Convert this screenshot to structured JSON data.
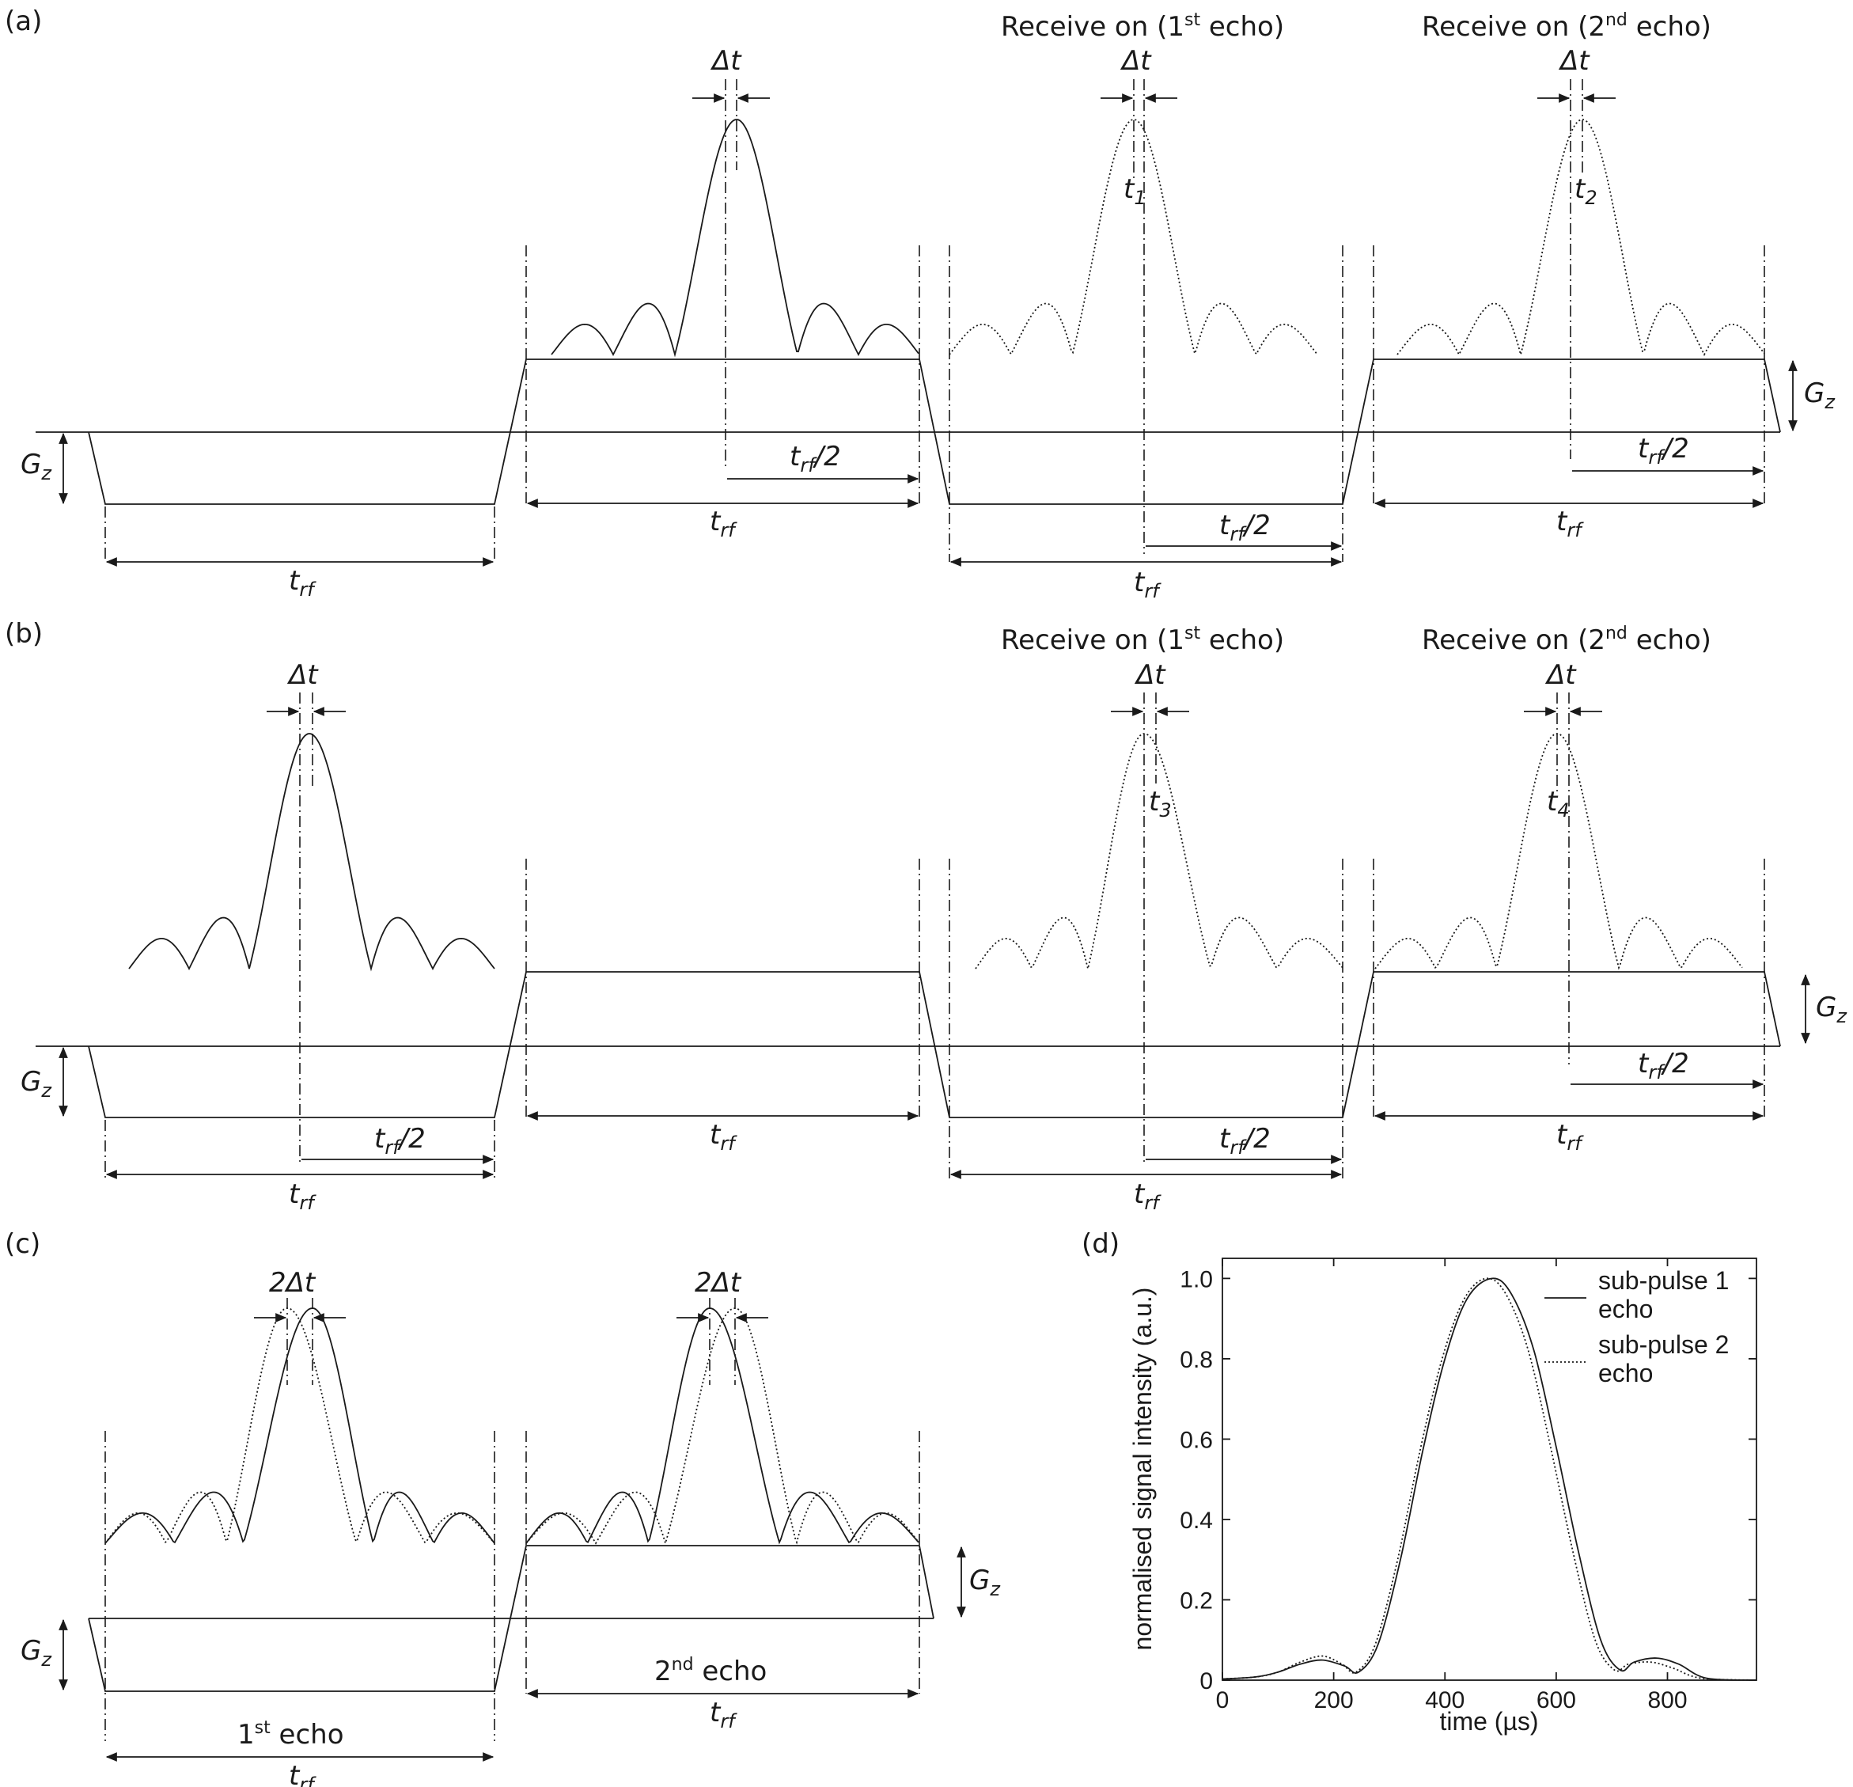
{
  "panels": {
    "a": {
      "label": "(a)",
      "receive1": [
        "Receive on (1",
        "st",
        " echo)"
      ],
      "receive2": [
        "Receive on (2",
        "nd",
        " echo)"
      ],
      "t1": [
        "t",
        "1"
      ],
      "t2": [
        "t",
        "2"
      ]
    },
    "b": {
      "label": "(b)",
      "receive1": [
        "Receive on (1",
        "st",
        " echo)"
      ],
      "receive2": [
        "Receive on (2",
        "nd",
        " echo)"
      ],
      "t3": [
        "t",
        "3"
      ],
      "t4": [
        "t",
        "4"
      ]
    },
    "c": {
      "label": "(c)",
      "echo1": [
        "1",
        "st",
        " echo"
      ],
      "echo2": [
        "2",
        "nd",
        " echo"
      ]
    },
    "d": {
      "label": "(d)"
    }
  },
  "symbols": {
    "delta_t": "Δt",
    "two_delta_t": "2Δt",
    "g": "G",
    "g_sub": "z",
    "t": "t",
    "t_sub": "rf",
    "half": "/2"
  },
  "chart_data": {
    "type": "line",
    "xlabel": "time (µs)",
    "ylabel": "normalised signal intensity (a.u.)",
    "xlim": [
      0,
      960
    ],
    "ylim": [
      0,
      1.05
    ],
    "xticks": [
      0,
      200,
      400,
      600,
      800
    ],
    "xtick_labels": [
      "0",
      "200",
      "400",
      "600",
      "800"
    ],
    "yticks": [
      0,
      0.2,
      0.4,
      0.6,
      0.8,
      1.0
    ],
    "ytick_labels": [
      "0",
      "0.2",
      "0.4",
      "0.6",
      "0.8",
      "1.0"
    ],
    "legend_position": "top-right",
    "series": [
      {
        "name": "sub-pulse 1 echo",
        "legend_lines": [
          "sub-pulse 1",
          "echo"
        ],
        "style": "solid",
        "x": [
          0,
          60,
          100,
          140,
          180,
          220,
          245,
          280,
          320,
          360,
          400,
          440,
          485,
          520,
          560,
          600,
          640,
          680,
          715,
          740,
          780,
          820,
          870,
          960
        ],
        "y": [
          0.003,
          0.008,
          0.02,
          0.04,
          0.05,
          0.035,
          0.02,
          0.09,
          0.3,
          0.57,
          0.8,
          0.95,
          1.0,
          0.96,
          0.82,
          0.58,
          0.32,
          0.1,
          0.025,
          0.045,
          0.055,
          0.04,
          0.005,
          0.0
        ]
      },
      {
        "name": "sub-pulse 2 echo",
        "legend_lines": [
          "sub-pulse 2",
          "echo"
        ],
        "style": "dotted",
        "x": [
          0,
          60,
          100,
          140,
          180,
          215,
          240,
          275,
          315,
          355,
          395,
          435,
          475,
          510,
          550,
          590,
          630,
          670,
          705,
          730,
          770,
          810,
          860,
          960
        ],
        "y": [
          0.003,
          0.008,
          0.02,
          0.045,
          0.06,
          0.04,
          0.02,
          0.09,
          0.3,
          0.57,
          0.8,
          0.95,
          1.0,
          0.96,
          0.82,
          0.58,
          0.32,
          0.1,
          0.025,
          0.04,
          0.045,
          0.03,
          0.005,
          0.0
        ]
      }
    ]
  }
}
